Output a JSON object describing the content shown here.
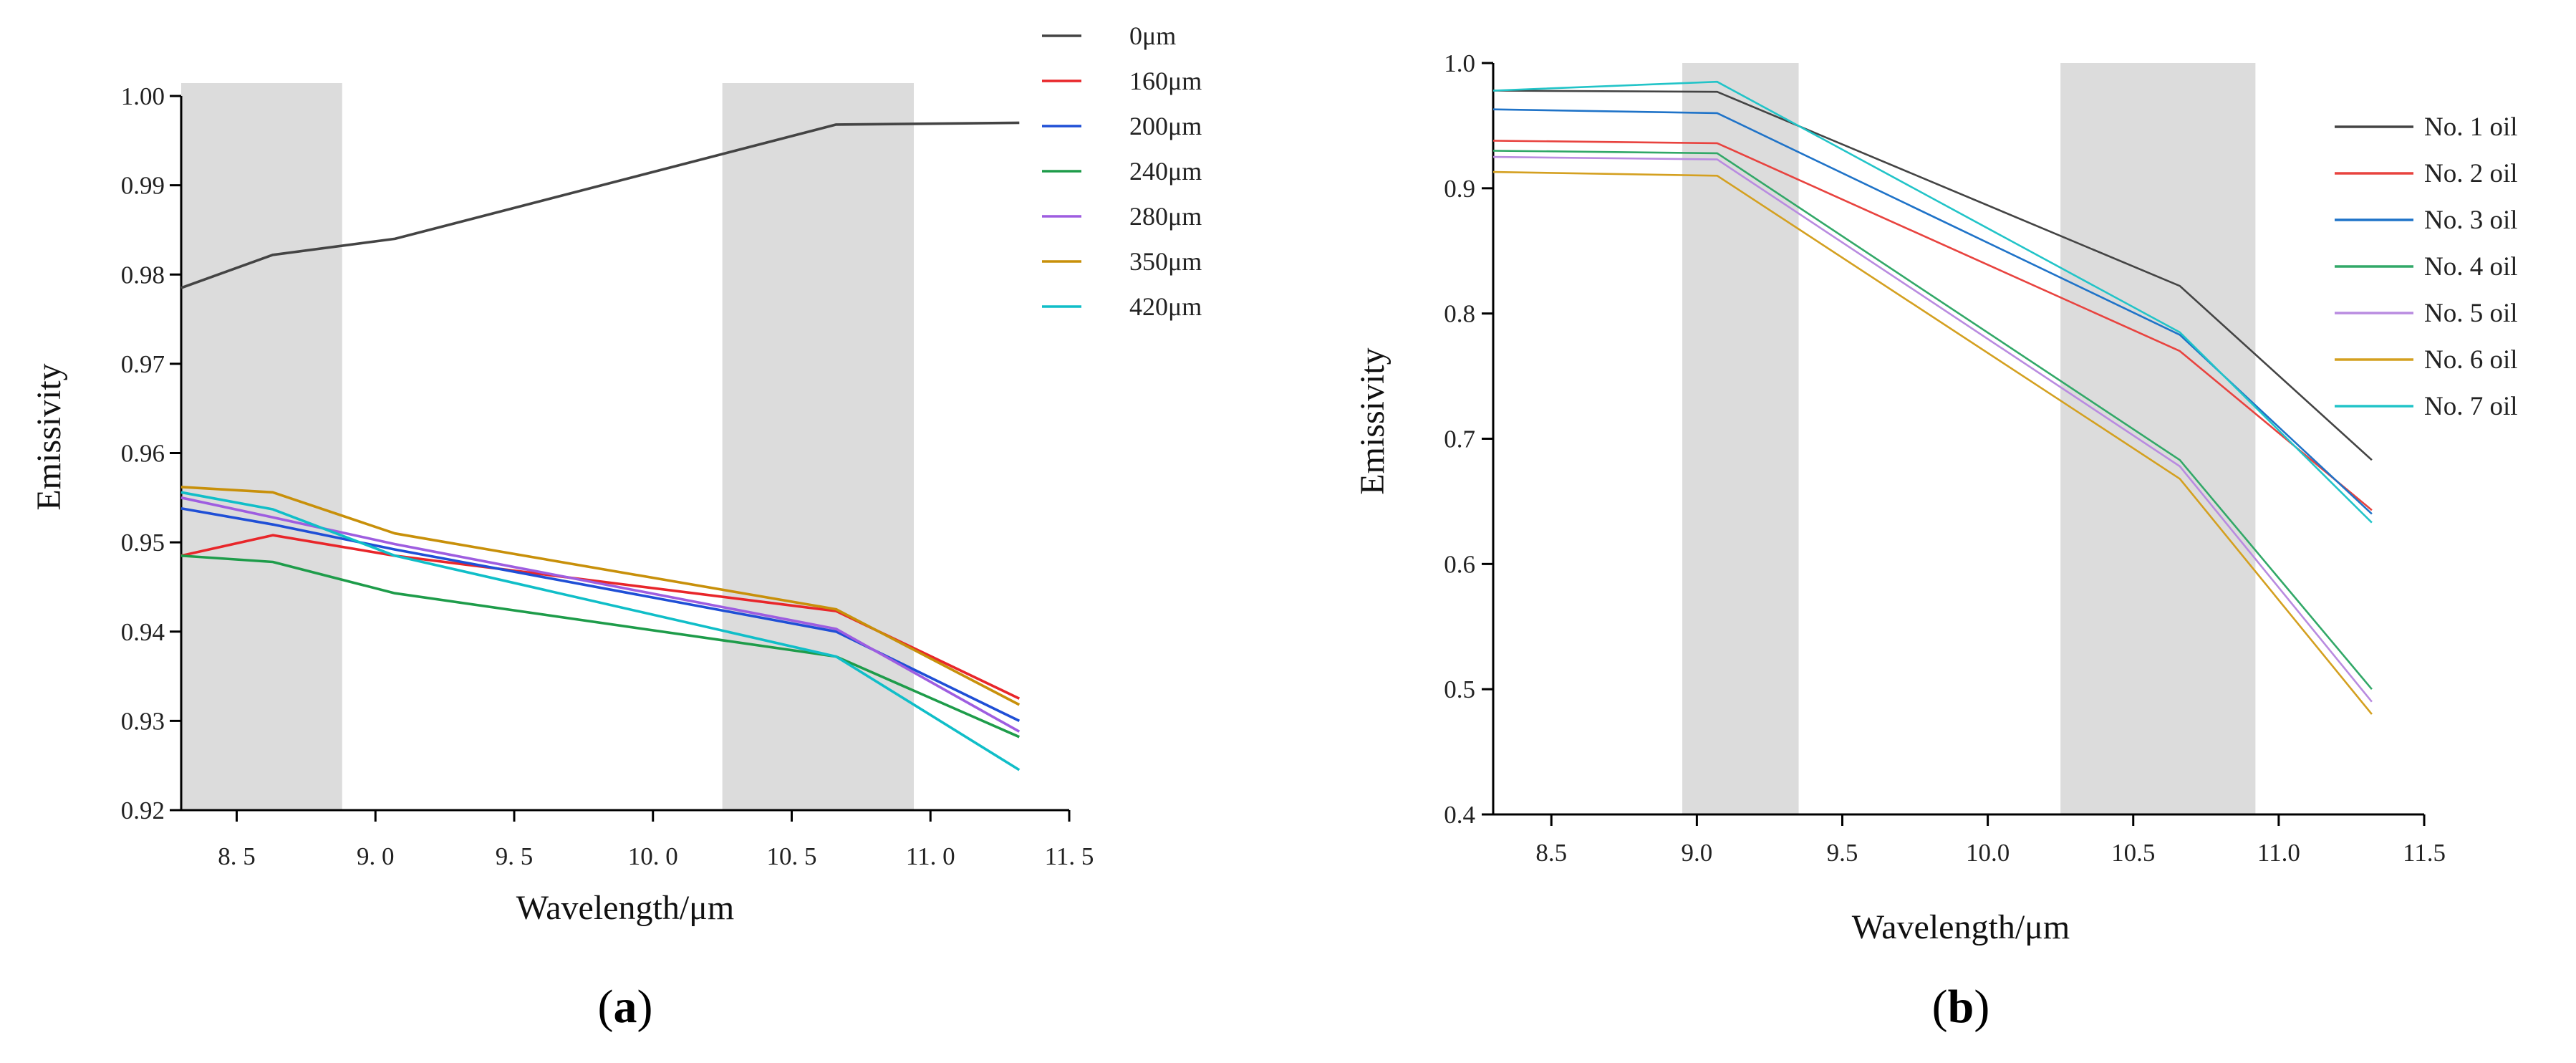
{
  "chart_data": [
    {
      "id": "a",
      "type": "line",
      "panel_label": "a",
      "title": "",
      "xlabel": "Wavelength/μm",
      "ylabel": "Emissivity",
      "xlim": [
        8.3,
        11.5
      ],
      "ylim": [
        0.92,
        1.0
      ],
      "x_ticks": [
        8.5,
        9.0,
        9.5,
        10.0,
        10.5,
        11.0,
        11.5
      ],
      "x_tick_labels": [
        "8. 5",
        "9. 0",
        "9. 5",
        "10. 0",
        "10. 5",
        "11. 0",
        "11. 5"
      ],
      "y_ticks": [
        0.92,
        0.93,
        0.94,
        0.95,
        0.96,
        0.97,
        0.98,
        0.99,
        1.0
      ],
      "y_tick_labels": [
        "0.92",
        "0.93",
        "0.94",
        "0.95",
        "0.96",
        "0.97",
        "0.98",
        "0.99",
        "1.00"
      ],
      "shaded_bands": [
        [
          8.3,
          8.88
        ],
        [
          10.25,
          10.94
        ]
      ],
      "legend_position": "top-right",
      "x": [
        8.3,
        8.63,
        9.07,
        10.66,
        11.32
      ],
      "series": [
        {
          "name": "0μm",
          "color": "#444444",
          "values": [
            0.9785,
            0.9822,
            0.984,
            0.9968,
            0.997
          ]
        },
        {
          "name": "160μm",
          "color": "#e8262a",
          "values": [
            0.9485,
            0.9508,
            0.9485,
            0.9423,
            0.9325
          ]
        },
        {
          "name": "200μm",
          "color": "#1f4fd6",
          "values": [
            0.9538,
            0.952,
            0.9492,
            0.94,
            0.93
          ]
        },
        {
          "name": "240μm",
          "color": "#1e9c4a",
          "values": [
            0.9485,
            0.9478,
            0.9443,
            0.9372,
            0.9282
          ]
        },
        {
          "name": "280μm",
          "color": "#9e5de0",
          "values": [
            0.955,
            0.9528,
            0.9498,
            0.9403,
            0.9288
          ]
        },
        {
          "name": "350μm",
          "color": "#c8900a",
          "values": [
            0.9562,
            0.9556,
            0.951,
            0.9425,
            0.9318
          ]
        },
        {
          "name": "420μm",
          "color": "#10bec8",
          "values": [
            0.9556,
            0.9537,
            0.9485,
            0.9372,
            0.9245
          ]
        }
      ]
    },
    {
      "id": "b",
      "type": "line",
      "panel_label": "b",
      "title": "",
      "xlabel": "Wavelength/μm",
      "ylabel": "Emissivity",
      "xlim": [
        8.3,
        11.5
      ],
      "ylim": [
        0.4,
        1.0
      ],
      "x_ticks": [
        8.5,
        9.0,
        9.5,
        10.0,
        10.5,
        11.0,
        11.5
      ],
      "x_tick_labels": [
        "8.5",
        "9.0",
        "9.5",
        "10.0",
        "10.5",
        "11.0",
        "11.5"
      ],
      "y_ticks": [
        0.4,
        0.5,
        0.6,
        0.7,
        0.8,
        0.9,
        1.0
      ],
      "y_tick_labels": [
        "0.4",
        "0.5",
        "0.6",
        "0.7",
        "0.8",
        "0.9",
        "1.0"
      ],
      "shaded_bands": [
        [
          8.95,
          9.35
        ],
        [
          10.25,
          10.92
        ]
      ],
      "legend_position": "right",
      "x": [
        8.3,
        9.07,
        10.66,
        11.32
      ],
      "series": [
        {
          "name": "No. 1 oil",
          "color": "#444444",
          "values": [
            0.978,
            0.977,
            0.822,
            0.683
          ]
        },
        {
          "name": "No. 2 oil",
          "color": "#e8433f",
          "values": [
            0.938,
            0.936,
            0.77,
            0.643
          ]
        },
        {
          "name": "No. 3 oil",
          "color": "#1f73c8",
          "values": [
            0.963,
            0.96,
            0.783,
            0.64
          ]
        },
        {
          "name": "No. 4 oil",
          "color": "#32a868",
          "values": [
            0.93,
            0.928,
            0.683,
            0.5
          ]
        },
        {
          "name": "No. 5 oil",
          "color": "#b98be0",
          "values": [
            0.925,
            0.923,
            0.678,
            0.49
          ]
        },
        {
          "name": "No. 6 oil",
          "color": "#d4a020",
          "values": [
            0.913,
            0.91,
            0.668,
            0.48
          ]
        },
        {
          "name": "No. 7 oil",
          "color": "#22c4c8",
          "values": [
            0.978,
            0.985,
            0.785,
            0.633
          ]
        }
      ]
    }
  ]
}
